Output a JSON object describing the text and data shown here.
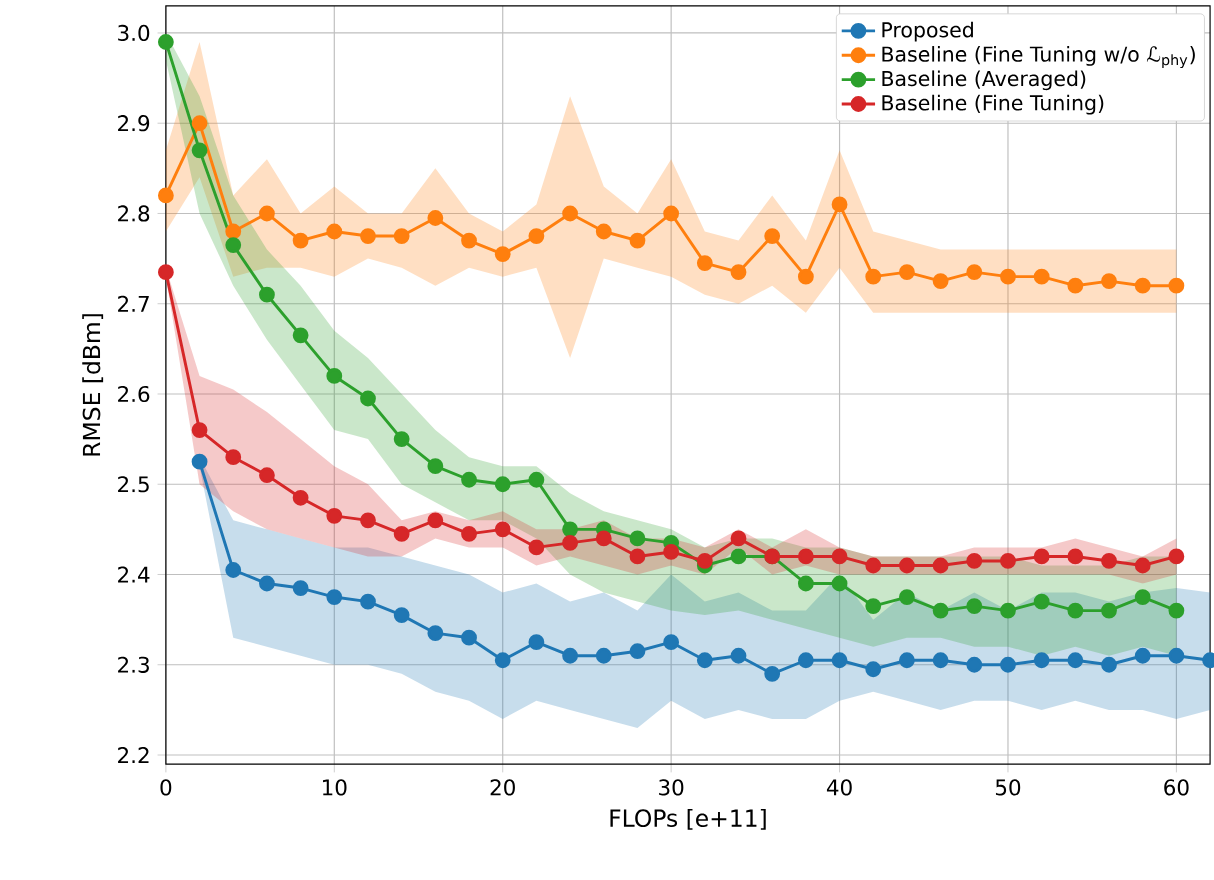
{
  "chart_data": {
    "type": "line",
    "xlabel": "FLOPs [e+11]",
    "ylabel": "RMSE [dBm]",
    "xlim": [
      0,
      62
    ],
    "ylim": [
      2.19,
      3.03
    ],
    "xticks": [
      0,
      10,
      20,
      30,
      40,
      50,
      60
    ],
    "yticks": [
      2.2,
      2.3,
      2.4,
      2.5,
      2.6,
      2.7,
      2.8,
      2.9,
      {
        "value": 3.0,
        "label": "3.0"
      }
    ],
    "grid": true,
    "legend": "top right",
    "marker": "circle",
    "line_style": "solid",
    "series": [
      {
        "name": "Proposed",
        "color": "#1f77b4",
        "x": [
          2,
          4,
          6,
          8,
          10,
          12,
          14,
          16,
          18,
          20,
          22,
          24,
          26,
          28,
          30,
          32,
          34,
          36,
          38,
          40,
          42,
          44,
          46,
          48,
          50,
          52,
          54,
          56,
          58,
          60,
          62
        ],
        "values": [
          2.525,
          2.405,
          2.39,
          2.385,
          2.375,
          2.37,
          2.355,
          2.335,
          2.33,
          2.305,
          2.325,
          2.31,
          2.31,
          2.315,
          2.325,
          2.305,
          2.31,
          2.29,
          2.305,
          2.305,
          2.295,
          2.305,
          2.305,
          2.3,
          2.3,
          2.305,
          2.305,
          2.3,
          2.31,
          2.31,
          2.305
        ],
        "upper": [
          2.53,
          2.46,
          2.45,
          2.44,
          2.43,
          2.43,
          2.42,
          2.41,
          2.4,
          2.38,
          2.39,
          2.37,
          2.38,
          2.36,
          2.4,
          2.37,
          2.38,
          2.36,
          2.36,
          2.4,
          2.35,
          2.38,
          2.36,
          2.38,
          2.36,
          2.38,
          2.38,
          2.37,
          2.38,
          2.385,
          2.38
        ],
        "lower": [
          2.52,
          2.33,
          2.32,
          2.31,
          2.3,
          2.3,
          2.29,
          2.27,
          2.26,
          2.24,
          2.26,
          2.25,
          2.24,
          2.23,
          2.26,
          2.24,
          2.25,
          2.24,
          2.24,
          2.26,
          2.27,
          2.26,
          2.25,
          2.26,
          2.26,
          2.25,
          2.26,
          2.25,
          2.25,
          2.24,
          2.25
        ]
      },
      {
        "name": "Baseline (Fine Tuning w/o ℒ$_{phy}$)",
        "color": "#ff7f0e",
        "x": [
          0,
          2,
          4,
          6,
          8,
          10,
          12,
          14,
          16,
          18,
          20,
          22,
          24,
          26,
          28,
          30,
          32,
          34,
          36,
          38,
          40,
          42,
          44,
          46,
          48,
          50,
          52,
          54,
          56,
          58,
          60
        ],
        "values": [
          2.82,
          2.9,
          2.78,
          2.8,
          2.77,
          2.78,
          2.775,
          2.775,
          2.795,
          2.77,
          2.755,
          2.775,
          2.8,
          2.78,
          2.77,
          2.8,
          2.745,
          2.735,
          2.775,
          2.73,
          2.81,
          2.73,
          2.735,
          2.725,
          2.735,
          2.73,
          2.73,
          2.72,
          2.725,
          2.72,
          2.72
        ],
        "upper": [
          2.87,
          2.99,
          2.82,
          2.86,
          2.8,
          2.83,
          2.8,
          2.8,
          2.85,
          2.8,
          2.78,
          2.81,
          2.93,
          2.83,
          2.8,
          2.86,
          2.78,
          2.77,
          2.82,
          2.77,
          2.87,
          2.78,
          2.77,
          2.76,
          2.76,
          2.76,
          2.76,
          2.76,
          2.76,
          2.76,
          2.76
        ],
        "lower": [
          2.78,
          2.84,
          2.73,
          2.74,
          2.74,
          2.73,
          2.75,
          2.74,
          2.72,
          2.74,
          2.73,
          2.74,
          2.64,
          2.75,
          2.74,
          2.73,
          2.71,
          2.7,
          2.72,
          2.69,
          2.74,
          2.69,
          2.69,
          2.69,
          2.69,
          2.69,
          2.69,
          2.69,
          2.69,
          2.69,
          2.69
        ]
      },
      {
        "name": "Baseline (Averaged)",
        "color": "#2ca02c",
        "x": [
          0,
          2,
          4,
          6,
          8,
          10,
          12,
          14,
          16,
          18,
          20,
          22,
          24,
          26,
          28,
          30,
          32,
          34,
          36,
          38,
          40,
          42,
          44,
          46,
          48,
          50,
          52,
          54,
          56,
          58,
          60
        ],
        "values": [
          2.99,
          2.87,
          2.765,
          2.71,
          2.665,
          2.62,
          2.595,
          2.55,
          2.52,
          2.505,
          2.5,
          2.505,
          2.45,
          2.45,
          2.44,
          2.435,
          2.41,
          2.42,
          2.42,
          2.39,
          2.39,
          2.365,
          2.375,
          2.36,
          2.365,
          2.36,
          2.37,
          2.36,
          2.36,
          2.375,
          2.36
        ],
        "upper": [
          3.0,
          2.93,
          2.82,
          2.76,
          2.72,
          2.67,
          2.64,
          2.6,
          2.56,
          2.53,
          2.52,
          2.52,
          2.49,
          2.47,
          2.46,
          2.45,
          2.43,
          2.44,
          2.44,
          2.43,
          2.43,
          2.42,
          2.42,
          2.42,
          2.42,
          2.42,
          2.41,
          2.41,
          2.41,
          2.42,
          2.42
        ],
        "lower": [
          2.97,
          2.8,
          2.72,
          2.66,
          2.61,
          2.56,
          2.55,
          2.5,
          2.48,
          2.46,
          2.46,
          2.44,
          2.4,
          2.38,
          2.37,
          2.36,
          2.355,
          2.36,
          2.35,
          2.34,
          2.33,
          2.32,
          2.33,
          2.33,
          2.32,
          2.32,
          2.31,
          2.32,
          2.31,
          2.32,
          2.31
        ]
      },
      {
        "name": "Baseline (Fine Tuning)",
        "color": "#d62728",
        "x": [
          0,
          2,
          4,
          6,
          8,
          10,
          12,
          14,
          16,
          18,
          20,
          22,
          24,
          26,
          28,
          30,
          32,
          34,
          36,
          38,
          40,
          42,
          44,
          46,
          48,
          50,
          52,
          54,
          56,
          58,
          60
        ],
        "values": [
          2.735,
          2.56,
          2.53,
          2.51,
          2.485,
          2.465,
          2.46,
          2.445,
          2.46,
          2.445,
          2.45,
          2.43,
          2.435,
          2.44,
          2.42,
          2.425,
          2.415,
          2.44,
          2.42,
          2.42,
          2.42,
          2.41,
          2.41,
          2.41,
          2.415,
          2.415,
          2.42,
          2.42,
          2.415,
          2.41,
          2.42
        ],
        "upper": [
          2.74,
          2.62,
          2.605,
          2.58,
          2.55,
          2.52,
          2.5,
          2.46,
          2.47,
          2.46,
          2.47,
          2.45,
          2.45,
          2.46,
          2.44,
          2.44,
          2.43,
          2.45,
          2.43,
          2.45,
          2.43,
          2.42,
          2.42,
          2.42,
          2.43,
          2.43,
          2.43,
          2.44,
          2.43,
          2.42,
          2.44
        ],
        "lower": [
          2.73,
          2.5,
          2.47,
          2.45,
          2.44,
          2.43,
          2.42,
          2.42,
          2.44,
          2.43,
          2.43,
          2.41,
          2.42,
          2.41,
          2.4,
          2.41,
          2.4,
          2.43,
          2.4,
          2.41,
          2.4,
          2.4,
          2.4,
          2.4,
          2.4,
          2.4,
          2.4,
          2.4,
          2.4,
          2.39,
          2.4
        ]
      }
    ]
  }
}
